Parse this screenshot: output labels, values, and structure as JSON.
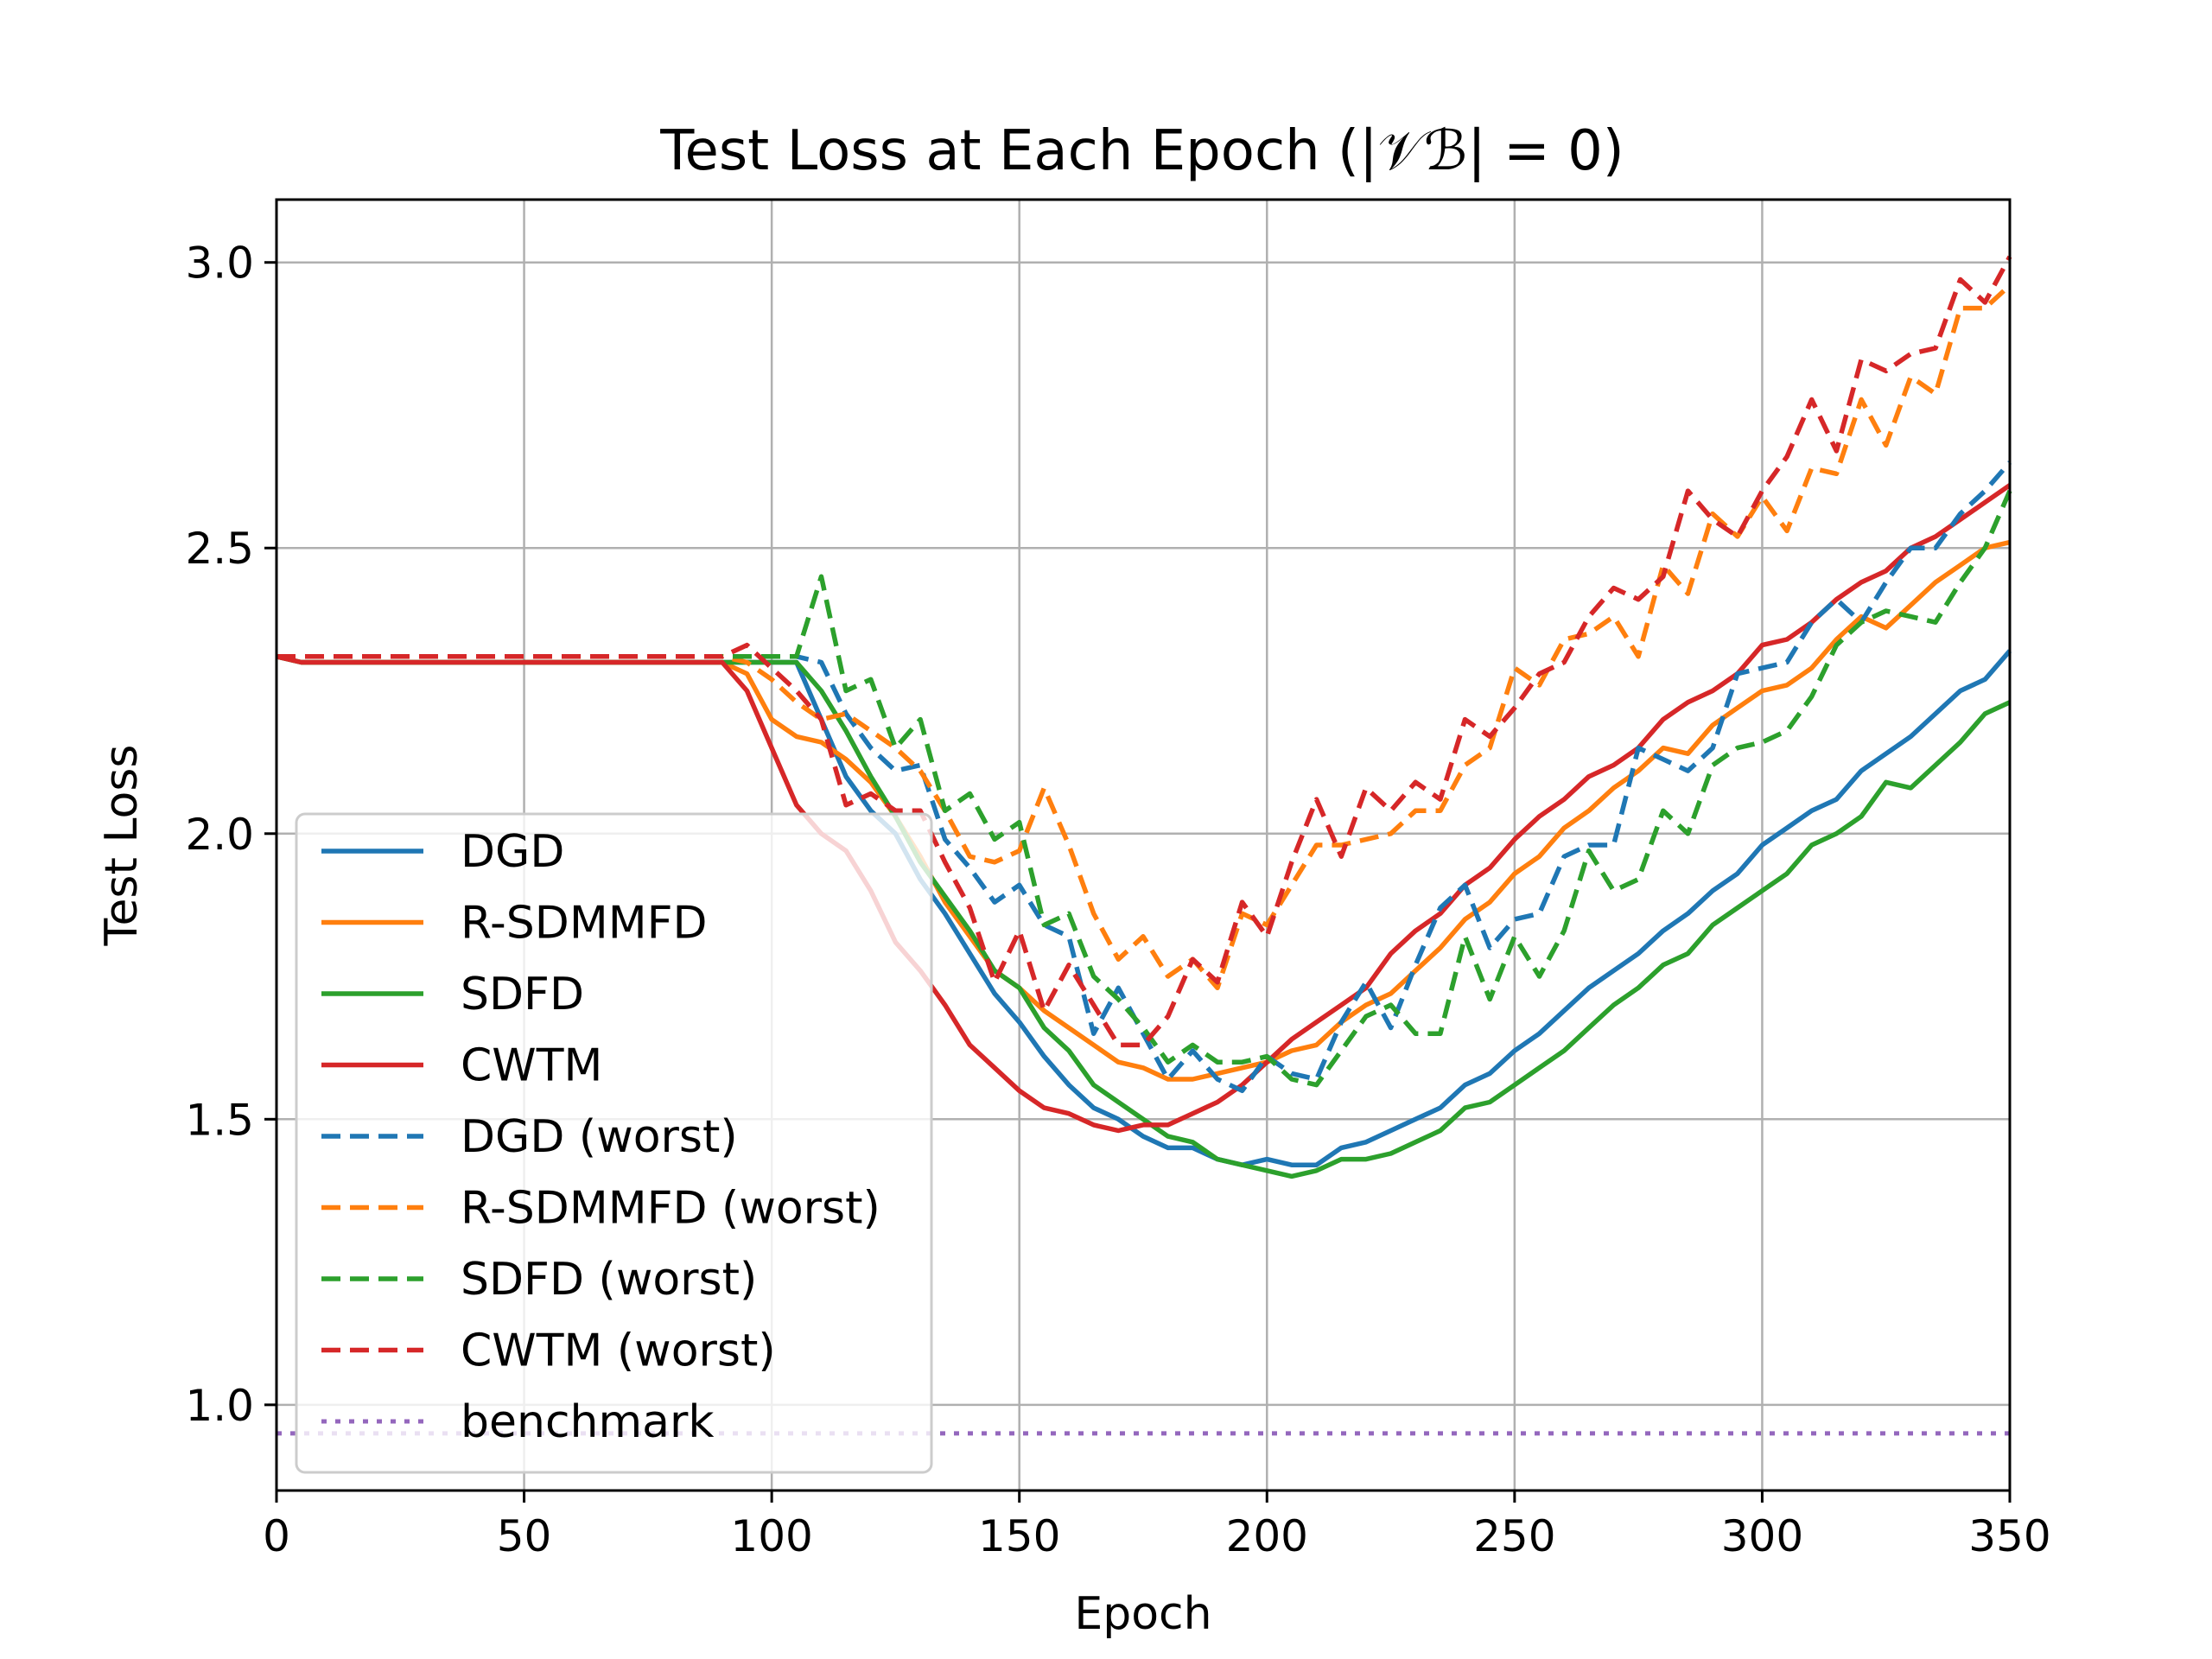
{
  "chart_data": {
    "type": "line",
    "title": "Test Loss at Each Epoch (|𝒱ℬ| = 0)",
    "xlabel": "Epoch",
    "ylabel": "Test Loss",
    "xlim": [
      0,
      350
    ],
    "ylim": [
      0.85,
      3.11
    ],
    "xticks": [
      "0",
      "50",
      "100",
      "150",
      "200",
      "250",
      "300",
      "350"
    ],
    "yticks": [
      "1.0",
      "1.5",
      "2.0",
      "2.5",
      "3.0"
    ],
    "grid": true,
    "legend_position": "lower left",
    "series": [
      {
        "name": "DGD",
        "color": "#1f77b4",
        "style": "solid",
        "x": [
          0,
          5,
          90,
          95,
          100,
          105,
          110,
          115,
          120,
          125,
          130,
          135,
          140,
          145,
          150,
          155,
          160,
          165,
          170,
          175,
          180,
          185,
          190,
          195,
          200,
          205,
          210,
          215,
          220,
          225,
          230,
          235,
          240,
          245,
          250,
          255,
          260,
          265,
          270,
          275,
          280,
          285,
          290,
          295,
          300,
          305,
          310,
          315,
          320,
          325,
          330,
          335,
          340,
          345,
          350
        ],
        "y": [
          2.31,
          2.3,
          2.3,
          2.3,
          2.3,
          2.3,
          2.2,
          2.1,
          2.04,
          2.0,
          1.92,
          1.86,
          1.79,
          1.72,
          1.67,
          1.61,
          1.56,
          1.52,
          1.5,
          1.47,
          1.45,
          1.45,
          1.43,
          1.42,
          1.43,
          1.42,
          1.42,
          1.45,
          1.46,
          1.48,
          1.5,
          1.52,
          1.56,
          1.58,
          1.62,
          1.65,
          1.69,
          1.73,
          1.76,
          1.79,
          1.83,
          1.86,
          1.9,
          1.93,
          1.98,
          2.01,
          2.04,
          2.06,
          2.11,
          2.14,
          2.17,
          2.21,
          2.25,
          2.27,
          2.32
        ]
      },
      {
        "name": "R-SDMMFD",
        "color": "#ff7f0e",
        "style": "solid",
        "x": [
          0,
          5,
          90,
          95,
          100,
          105,
          110,
          115,
          120,
          125,
          130,
          135,
          140,
          145,
          150,
          155,
          160,
          165,
          170,
          175,
          180,
          185,
          190,
          195,
          200,
          205,
          210,
          215,
          220,
          225,
          230,
          235,
          240,
          245,
          250,
          255,
          260,
          265,
          270,
          275,
          280,
          285,
          290,
          295,
          300,
          305,
          310,
          315,
          320,
          325,
          330,
          335,
          340,
          345,
          350
        ],
        "y": [
          2.31,
          2.3,
          2.3,
          2.28,
          2.2,
          2.17,
          2.16,
          2.13,
          2.09,
          2.03,
          1.96,
          1.88,
          1.82,
          1.76,
          1.73,
          1.69,
          1.66,
          1.63,
          1.6,
          1.59,
          1.57,
          1.57,
          1.58,
          1.59,
          1.6,
          1.62,
          1.63,
          1.67,
          1.7,
          1.72,
          1.76,
          1.8,
          1.85,
          1.88,
          1.93,
          1.96,
          2.01,
          2.04,
          2.08,
          2.11,
          2.15,
          2.14,
          2.19,
          2.22,
          2.25,
          2.26,
          2.29,
          2.34,
          2.38,
          2.36,
          2.4,
          2.44,
          2.47,
          2.5,
          2.51
        ]
      },
      {
        "name": "SDFD",
        "color": "#2ca02c",
        "style": "solid",
        "x": [
          0,
          5,
          90,
          95,
          100,
          105,
          110,
          115,
          120,
          125,
          130,
          135,
          140,
          145,
          150,
          155,
          160,
          165,
          170,
          175,
          180,
          185,
          190,
          195,
          200,
          205,
          210,
          215,
          220,
          225,
          230,
          235,
          240,
          245,
          250,
          255,
          260,
          265,
          270,
          275,
          280,
          285,
          290,
          295,
          300,
          305,
          310,
          315,
          320,
          325,
          330,
          335,
          340,
          345,
          350
        ],
        "y": [
          2.31,
          2.3,
          2.3,
          2.3,
          2.3,
          2.3,
          2.25,
          2.18,
          2.1,
          2.03,
          1.95,
          1.89,
          1.83,
          1.76,
          1.73,
          1.66,
          1.62,
          1.56,
          1.53,
          1.5,
          1.47,
          1.46,
          1.43,
          1.42,
          1.41,
          1.4,
          1.41,
          1.43,
          1.43,
          1.44,
          1.46,
          1.48,
          1.52,
          1.53,
          1.56,
          1.59,
          1.62,
          1.66,
          1.7,
          1.73,
          1.77,
          1.79,
          1.84,
          1.87,
          1.9,
          1.93,
          1.98,
          2.0,
          2.03,
          2.09,
          2.08,
          2.12,
          2.16,
          2.21,
          2.23
        ]
      },
      {
        "name": "CWTM",
        "color": "#d62728",
        "style": "solid",
        "x": [
          0,
          5,
          90,
          95,
          100,
          105,
          110,
          115,
          120,
          125,
          130,
          135,
          140,
          145,
          150,
          155,
          160,
          165,
          170,
          175,
          180,
          185,
          190,
          195,
          200,
          205,
          210,
          215,
          220,
          225,
          230,
          235,
          240,
          245,
          250,
          255,
          260,
          265,
          270,
          275,
          280,
          285,
          290,
          295,
          300,
          305,
          310,
          315,
          320,
          325,
          330,
          335,
          340,
          345,
          350
        ],
        "y": [
          2.31,
          2.3,
          2.3,
          2.25,
          2.15,
          2.05,
          2.0,
          1.97,
          1.9,
          1.81,
          1.76,
          1.7,
          1.63,
          1.59,
          1.55,
          1.52,
          1.51,
          1.49,
          1.48,
          1.49,
          1.49,
          1.51,
          1.53,
          1.56,
          1.6,
          1.64,
          1.67,
          1.7,
          1.73,
          1.79,
          1.83,
          1.86,
          1.91,
          1.94,
          1.99,
          2.03,
          2.06,
          2.1,
          2.12,
          2.15,
          2.2,
          2.23,
          2.25,
          2.28,
          2.33,
          2.34,
          2.37,
          2.41,
          2.44,
          2.46,
          2.5,
          2.52,
          2.55,
          2.58,
          2.61
        ]
      },
      {
        "name": "DGD (worst)",
        "color": "#1f77b4",
        "style": "dashed",
        "x": [
          0,
          5,
          90,
          95,
          100,
          105,
          110,
          115,
          120,
          125,
          130,
          135,
          140,
          145,
          150,
          155,
          160,
          165,
          170,
          175,
          180,
          185,
          190,
          195,
          200,
          205,
          210,
          215,
          220,
          225,
          230,
          235,
          240,
          245,
          250,
          255,
          260,
          265,
          270,
          275,
          280,
          285,
          290,
          295,
          300,
          305,
          310,
          315,
          320,
          325,
          330,
          335,
          340,
          345,
          350
        ],
        "y": [
          2.31,
          2.31,
          2.31,
          2.31,
          2.31,
          2.31,
          2.3,
          2.21,
          2.15,
          2.11,
          2.12,
          1.99,
          1.94,
          1.88,
          1.91,
          1.84,
          1.82,
          1.65,
          1.73,
          1.65,
          1.57,
          1.62,
          1.57,
          1.55,
          1.61,
          1.58,
          1.57,
          1.67,
          1.74,
          1.66,
          1.77,
          1.87,
          1.91,
          1.8,
          1.85,
          1.86,
          1.96,
          1.98,
          1.98,
          2.15,
          2.13,
          2.11,
          2.15,
          2.28,
          2.29,
          2.3,
          2.37,
          2.41,
          2.37,
          2.44,
          2.5,
          2.5,
          2.56,
          2.6,
          2.65
        ]
      },
      {
        "name": "R-SDMMFD (worst)",
        "color": "#ff7f0e",
        "style": "dashed",
        "x": [
          0,
          5,
          90,
          95,
          100,
          105,
          110,
          115,
          120,
          125,
          130,
          135,
          140,
          145,
          150,
          155,
          160,
          165,
          170,
          175,
          180,
          185,
          190,
          195,
          200,
          205,
          210,
          215,
          220,
          225,
          230,
          235,
          240,
          245,
          250,
          255,
          260,
          265,
          270,
          275,
          280,
          285,
          290,
          295,
          300,
          305,
          310,
          315,
          320,
          325,
          330,
          335,
          340,
          345,
          350
        ],
        "y": [
          2.31,
          2.31,
          2.31,
          2.3,
          2.27,
          2.23,
          2.2,
          2.21,
          2.18,
          2.15,
          2.11,
          2.04,
          1.96,
          1.95,
          1.97,
          2.08,
          1.98,
          1.86,
          1.78,
          1.82,
          1.75,
          1.78,
          1.73,
          1.86,
          1.84,
          1.91,
          1.98,
          1.98,
          1.99,
          2.0,
          2.04,
          2.04,
          2.12,
          2.15,
          2.29,
          2.26,
          2.34,
          2.35,
          2.38,
          2.31,
          2.47,
          2.42,
          2.56,
          2.52,
          2.59,
          2.53,
          2.64,
          2.63,
          2.76,
          2.68,
          2.8,
          2.77,
          2.92,
          2.92,
          2.96
        ]
      },
      {
        "name": "SDFD (worst)",
        "color": "#2ca02c",
        "style": "dashed",
        "x": [
          0,
          5,
          90,
          95,
          100,
          105,
          110,
          115,
          120,
          125,
          130,
          135,
          140,
          145,
          150,
          155,
          160,
          165,
          170,
          175,
          180,
          185,
          190,
          195,
          200,
          205,
          210,
          215,
          220,
          225,
          230,
          235,
          240,
          245,
          250,
          255,
          260,
          265,
          270,
          275,
          280,
          285,
          290,
          295,
          300,
          305,
          310,
          315,
          320,
          325,
          330,
          335,
          340,
          345,
          350
        ],
        "y": [
          2.31,
          2.31,
          2.31,
          2.31,
          2.31,
          2.31,
          2.45,
          2.25,
          2.27,
          2.15,
          2.2,
          2.04,
          2.07,
          1.99,
          2.02,
          1.84,
          1.86,
          1.75,
          1.71,
          1.66,
          1.6,
          1.63,
          1.6,
          1.6,
          1.61,
          1.57,
          1.56,
          1.62,
          1.68,
          1.7,
          1.65,
          1.65,
          1.82,
          1.71,
          1.82,
          1.75,
          1.83,
          1.97,
          1.9,
          1.92,
          2.04,
          2.0,
          2.12,
          2.15,
          2.16,
          2.18,
          2.24,
          2.33,
          2.37,
          2.39,
          2.38,
          2.37,
          2.44,
          2.5,
          2.6
        ]
      },
      {
        "name": "CWTM (worst)",
        "color": "#d62728",
        "style": "dashed",
        "x": [
          0,
          5,
          90,
          95,
          100,
          105,
          110,
          115,
          120,
          125,
          130,
          135,
          140,
          145,
          150,
          155,
          160,
          165,
          170,
          175,
          180,
          185,
          190,
          195,
          200,
          205,
          210,
          215,
          220,
          225,
          230,
          235,
          240,
          245,
          250,
          255,
          260,
          265,
          270,
          275,
          280,
          285,
          290,
          295,
          300,
          305,
          310,
          315,
          320,
          325,
          330,
          335,
          340,
          345,
          350
        ],
        "y": [
          2.31,
          2.31,
          2.31,
          2.33,
          2.29,
          2.25,
          2.2,
          2.05,
          2.07,
          2.04,
          2.04,
          1.95,
          1.87,
          1.74,
          1.83,
          1.69,
          1.77,
          1.7,
          1.63,
          1.63,
          1.68,
          1.78,
          1.74,
          1.88,
          1.82,
          1.95,
          2.06,
          1.96,
          2.08,
          2.04,
          2.09,
          2.06,
          2.2,
          2.17,
          2.22,
          2.28,
          2.3,
          2.38,
          2.43,
          2.41,
          2.45,
          2.6,
          2.55,
          2.52,
          2.6,
          2.66,
          2.76,
          2.67,
          2.83,
          2.81,
          2.84,
          2.85,
          2.97,
          2.93,
          3.01
        ]
      },
      {
        "name": "benchmark",
        "color": "#9467bd",
        "style": "dotted",
        "x": [
          0,
          350
        ],
        "y": [
          0.95,
          0.95
        ]
      }
    ]
  }
}
